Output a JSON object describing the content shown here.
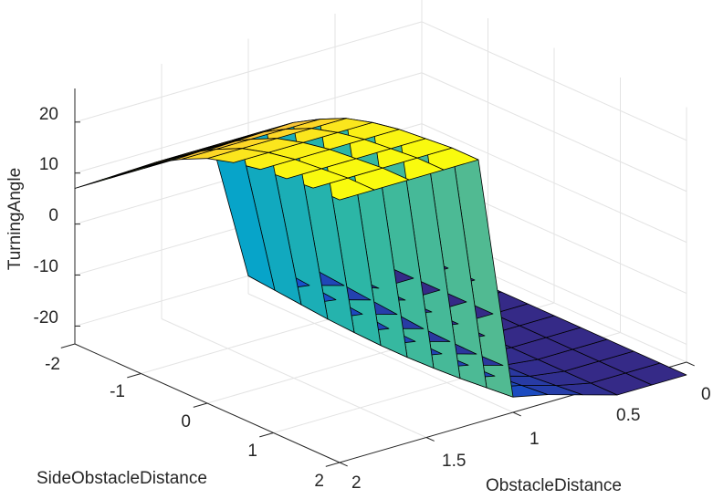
{
  "chart_data": {
    "type": "surface",
    "title": "",
    "xlabel": "SideObstacleDistance",
    "ylabel": "ObstacleDistance",
    "zlabel": "TurningAngle",
    "x": [
      -2,
      -1.6,
      -1.2,
      -0.8,
      -0.4,
      0,
      0.4,
      0.8,
      1.2,
      1.6,
      2
    ],
    "y": [
      0,
      0.2,
      0.4,
      0.6,
      0.8,
      1.0,
      1.2,
      1.4,
      1.6,
      1.8,
      2.0
    ],
    "z": [
      [
        -26,
        -26,
        -26,
        -26,
        -26,
        -26,
        -26,
        -26,
        -26,
        -26,
        -26
      ],
      [
        -26,
        -26,
        -26,
        -26,
        -26,
        -26,
        -26,
        -26,
        -26,
        -26,
        -26
      ],
      [
        -26,
        -26,
        -26,
        -26,
        -26,
        -26,
        -26,
        -26,
        -26,
        -26,
        -26
      ],
      [
        -23,
        -23.5,
        -24,
        -24.5,
        -25,
        -25.2,
        -25.3,
        -25.2,
        -25,
        -24.5,
        -24
      ],
      [
        -21,
        -21.5,
        -22,
        -22.5,
        -23,
        -23.2,
        -23.3,
        -23.2,
        -23,
        -22.5,
        -22
      ],
      [
        -20,
        -20.5,
        -21,
        -21.5,
        -21.8,
        -22,
        -22,
        -21.8,
        -21.5,
        -21,
        -20.5
      ],
      [
        7,
        11,
        15,
        19,
        22,
        24.5,
        26,
        27,
        27.5,
        28,
        28
      ],
      [
        7,
        11,
        15,
        19,
        22,
        24.5,
        26,
        27,
        27.5,
        28,
        28
      ],
      [
        7,
        11,
        15,
        19,
        22,
        24.5,
        26,
        27,
        27.5,
        28,
        28
      ],
      [
        7,
        11,
        15,
        19,
        22,
        24.5,
        26,
        27,
        27.5,
        28,
        28
      ],
      [
        7,
        11,
        15,
        19,
        22,
        24.5,
        26,
        27,
        27.5,
        28,
        28
      ]
    ],
    "xlim": [
      -2,
      2
    ],
    "ylim": [
      0,
      2
    ],
    "zlim": [
      -25,
      25
    ],
    "x_ticks": [
      "-2",
      "-1",
      "0",
      "1",
      "2"
    ],
    "y_ticks": [
      "0",
      "0.5",
      "1",
      "1.5",
      "2"
    ],
    "z_ticks": [
      "20",
      "10",
      "0",
      "-10",
      "-20"
    ],
    "grid": true,
    "colormap": "parula",
    "colormap_stops": [
      "#352a87",
      "#0f5cdd",
      "#1481d6",
      "#06a4ca",
      "#2eb7a4",
      "#87bf77",
      "#d1bb59",
      "#fec832",
      "#f9fb0e"
    ]
  }
}
